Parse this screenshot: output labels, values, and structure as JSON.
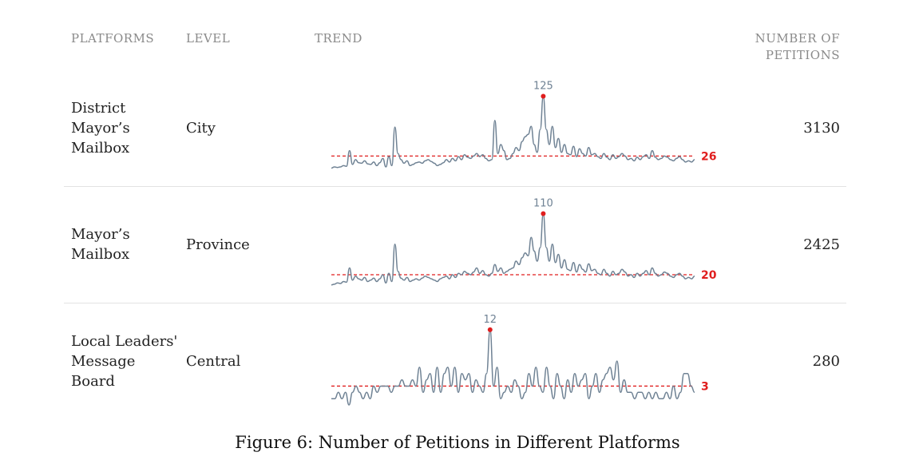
{
  "header": {
    "platforms": "PLATFORMS",
    "level": "LEVEL",
    "trend": "TREND",
    "count_line1": "NUMBER OF",
    "count_line2": "PETITIONS"
  },
  "caption": "Figure 6: Number of Petitions in Different Platforms",
  "colors": {
    "line": "#6f8294",
    "average": "#e01e1e"
  },
  "chart_data": [
    {
      "type": "line",
      "platform": [
        "District",
        "Mayor’s",
        "Mailbox"
      ],
      "level": "City",
      "total": "3130",
      "peak": 125,
      "peak_index": 70,
      "average": 26,
      "ylim": [
        0,
        135
      ],
      "values": [
        6,
        8,
        7,
        8,
        10,
        9,
        35,
        12,
        20,
        15,
        14,
        18,
        13,
        12,
        16,
        10,
        15,
        22,
        8,
        25,
        10,
        74,
        30,
        20,
        14,
        18,
        10,
        12,
        15,
        16,
        14,
        18,
        20,
        17,
        14,
        10,
        12,
        15,
        20,
        16,
        22,
        18,
        25,
        20,
        28,
        24,
        22,
        26,
        30,
        25,
        28,
        22,
        18,
        20,
        85,
        30,
        45,
        35,
        20,
        22,
        30,
        40,
        35,
        50,
        58,
        62,
        75,
        45,
        32,
        70,
        125,
        70,
        45,
        75,
        40,
        55,
        32,
        45,
        30,
        28,
        42,
        25,
        38,
        30,
        26,
        40,
        28,
        30,
        25,
        22,
        30,
        24,
        20,
        28,
        22,
        25,
        30,
        26,
        20,
        22,
        18,
        24,
        20,
        25,
        28,
        22,
        35,
        24,
        20,
        22,
        26,
        24,
        20,
        18,
        22,
        25,
        20,
        16,
        18,
        16,
        20
      ],
      "values_note": "Series digitized from the trend sparkline"
    },
    {
      "type": "line",
      "platform": [
        "Mayor’s",
        "Mailbox"
      ],
      "level": "Province",
      "total": "2425",
      "peak": 110,
      "peak_index": 70,
      "average": 20,
      "ylim": [
        0,
        120
      ],
      "values": [
        5,
        6,
        8,
        7,
        10,
        9,
        30,
        12,
        18,
        14,
        12,
        16,
        10,
        12,
        15,
        10,
        14,
        20,
        8,
        22,
        10,
        65,
        25,
        15,
        12,
        16,
        10,
        12,
        14,
        12,
        15,
        18,
        16,
        14,
        12,
        10,
        14,
        16,
        18,
        14,
        20,
        16,
        22,
        20,
        25,
        22,
        20,
        24,
        30,
        22,
        26,
        20,
        18,
        22,
        35,
        25,
        30,
        22,
        25,
        28,
        30,
        40,
        35,
        45,
        52,
        48,
        75,
        55,
        40,
        60,
        110,
        60,
        40,
        65,
        38,
        50,
        30,
        42,
        28,
        26,
        38,
        24,
        35,
        28,
        24,
        36,
        26,
        28,
        22,
        20,
        28,
        22,
        18,
        25,
        20,
        22,
        28,
        24,
        18,
        20,
        16,
        22,
        18,
        22,
        26,
        20,
        30,
        22,
        18,
        20,
        24,
        22,
        18,
        16,
        20,
        22,
        18,
        14,
        16,
        14,
        18
      ],
      "values_note": "Series digitized from the trend sparkline"
    },
    {
      "type": "line",
      "platform": [
        "Local Leaders'",
        "Message",
        "Board"
      ],
      "level": "Central",
      "total": "280",
      "peak": 12,
      "peak_index": 45,
      "average": 3,
      "ylim": [
        0,
        13
      ],
      "values": [
        1,
        1,
        2,
        1,
        2,
        0,
        2,
        3,
        2,
        1,
        2,
        1,
        3,
        2,
        3,
        3,
        3,
        2,
        3,
        3,
        4,
        3,
        3,
        4,
        3,
        6,
        2,
        4,
        5,
        2,
        6,
        2,
        5,
        6,
        3,
        6,
        2,
        5,
        4,
        5,
        2,
        4,
        3,
        2,
        5,
        12,
        3,
        6,
        1,
        2,
        3,
        2,
        4,
        3,
        1,
        2,
        5,
        3,
        6,
        3,
        2,
        6,
        3,
        1,
        5,
        3,
        1,
        4,
        2,
        5,
        3,
        4,
        5,
        1,
        3,
        5,
        2,
        4,
        5,
        6,
        4,
        7,
        2,
        4,
        2,
        2,
        1,
        2,
        2,
        1,
        2,
        1,
        2,
        1,
        1,
        2,
        1,
        3,
        1,
        2,
        5,
        5,
        3,
        2
      ],
      "values_note": "Series digitized from the trend sparkline"
    }
  ]
}
